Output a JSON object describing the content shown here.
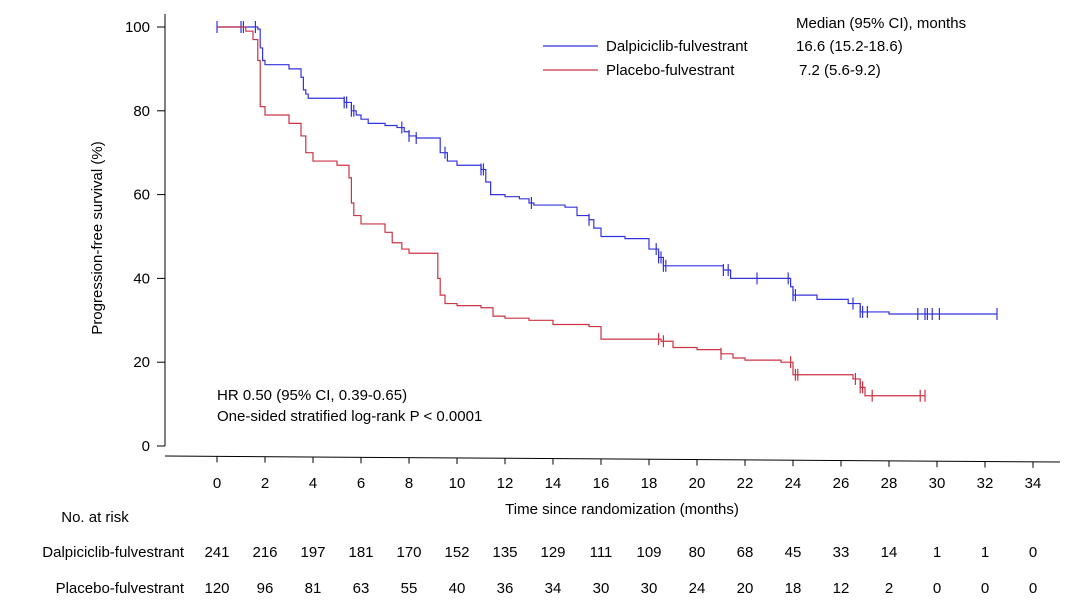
{
  "chart_data": {
    "type": "line",
    "xlabel": "Time since randomization (months)",
    "ylabel": "Progression-free survival (%)",
    "xlim": [
      0,
      34
    ],
    "ylim": [
      0,
      100
    ],
    "xticks": [
      0,
      2,
      4,
      6,
      8,
      10,
      12,
      14,
      16,
      18,
      20,
      22,
      24,
      26,
      28,
      30,
      32,
      34
    ],
    "yticks": [
      0,
      20,
      40,
      60,
      80,
      100
    ],
    "grid": false,
    "legend_position": "top-right",
    "legend_header": "Median (95% CI), months",
    "series": [
      {
        "name": "Dalpiciclib-fulvestrant",
        "color": "#3333dd",
        "median": "16.6 (15.2-18.6)",
        "x": [
          0,
          1.7,
          1.8,
          1.9,
          2.0,
          2.2,
          3.0,
          3.5,
          3.6,
          3.7,
          3.8,
          4.0,
          5.0,
          5.3,
          5.6,
          5.8,
          6.0,
          6.3,
          7.0,
          7.5,
          7.8,
          8.0,
          8.3,
          9.0,
          9.3,
          9.6,
          10.0,
          11.0,
          11.2,
          11.4,
          12.0,
          12.6,
          13.0,
          13.2,
          14.5,
          15.0,
          15.5,
          15.7,
          16.0,
          17.0,
          18.0,
          18.4,
          18.6,
          20.0,
          21.1,
          21.4,
          22.0,
          23.5,
          23.9,
          24.0,
          25.0,
          26.3,
          26.8,
          28.0,
          32.5
        ],
        "y": [
          100,
          99.5,
          95,
          92,
          91,
          91,
          90,
          88,
          85,
          84,
          83,
          83,
          83,
          82,
          80,
          79,
          78,
          77,
          76.5,
          76,
          75,
          74,
          73.5,
          73.5,
          70,
          68,
          67,
          66,
          63,
          60,
          59.5,
          59,
          58,
          57.5,
          57,
          55,
          54,
          52,
          50,
          49.5,
          47,
          45,
          43,
          43,
          42,
          40,
          40,
          40,
          38,
          36,
          35,
          34,
          32,
          31.5,
          31.5
        ],
        "censors": [
          0,
          1.0,
          1.1,
          1.6,
          5.3,
          5.4,
          5.6,
          5.7,
          7.7,
          8.0,
          8.3,
          9.5,
          11.0,
          11.1,
          13.1,
          15.5,
          18.3,
          18.4,
          18.5,
          18.6,
          18.7,
          21.1,
          21.3,
          22.5,
          23.8,
          24.0,
          24.1,
          26.5,
          26.8,
          26.9,
          27.1,
          29.2,
          29.5,
          29.6,
          29.8,
          30.1,
          32.5
        ]
      },
      {
        "name": "Placebo-fulvestrant",
        "color": "#cc3344",
        "median": "7.2 (5.6-9.2)",
        "x": [
          0,
          1.2,
          1.5,
          1.7,
          1.8,
          2.0,
          2.2,
          3.0,
          3.5,
          3.7,
          4.0,
          5.0,
          5.5,
          5.6,
          5.7,
          6.0,
          6.5,
          7.0,
          7.3,
          7.7,
          8.0,
          9.0,
          9.2,
          9.3,
          9.5,
          10.0,
          11.0,
          11.5,
          12.0,
          13.0,
          14.0,
          15.5,
          16.0,
          18.5,
          19.0,
          20.0,
          21.0,
          21.5,
          22.0,
          23.5,
          24.0,
          26.5,
          26.8,
          27.0,
          29.5
        ],
        "y": [
          100,
          99,
          97,
          92,
          81,
          79,
          79,
          77,
          74,
          70,
          68,
          67,
          64,
          58,
          55,
          53,
          53,
          51,
          48.5,
          47,
          46,
          46,
          40,
          36,
          34,
          33.5,
          33,
          31,
          30.5,
          30,
          29,
          28.5,
          25.5,
          25,
          23.5,
          23,
          22,
          21,
          20.5,
          20,
          17,
          16,
          14,
          12,
          12
        ],
        "censors": [
          18.4,
          18.6,
          21.0,
          23.9,
          24.1,
          24.2,
          26.6,
          26.8,
          26.9,
          27.3,
          29.3,
          29.5
        ]
      }
    ],
    "annotations": [
      "HR 0.50 (95% CI, 0.39-0.65)",
      "One-sided stratified log-rank P < 0.0001"
    ],
    "risk_table": {
      "title": "No. at risk",
      "rows": [
        {
          "label": "Dalpiciclib-fulvestrant",
          "values": [
            "241",
            "216",
            "197",
            "181",
            "170",
            "152",
            "135",
            "129",
            "111",
            "109",
            "80",
            "68",
            "45",
            "33",
            "14",
            "1",
            "1",
            "0"
          ]
        },
        {
          "label": "Placebo-fulvestrant",
          "values": [
            "120",
            "96",
            "81",
            "63",
            "55",
            "40",
            "36",
            "34",
            "30",
            "30",
            "24",
            "20",
            "18",
            "12",
            "2",
            "0",
            "0",
            "0"
          ]
        }
      ]
    }
  }
}
